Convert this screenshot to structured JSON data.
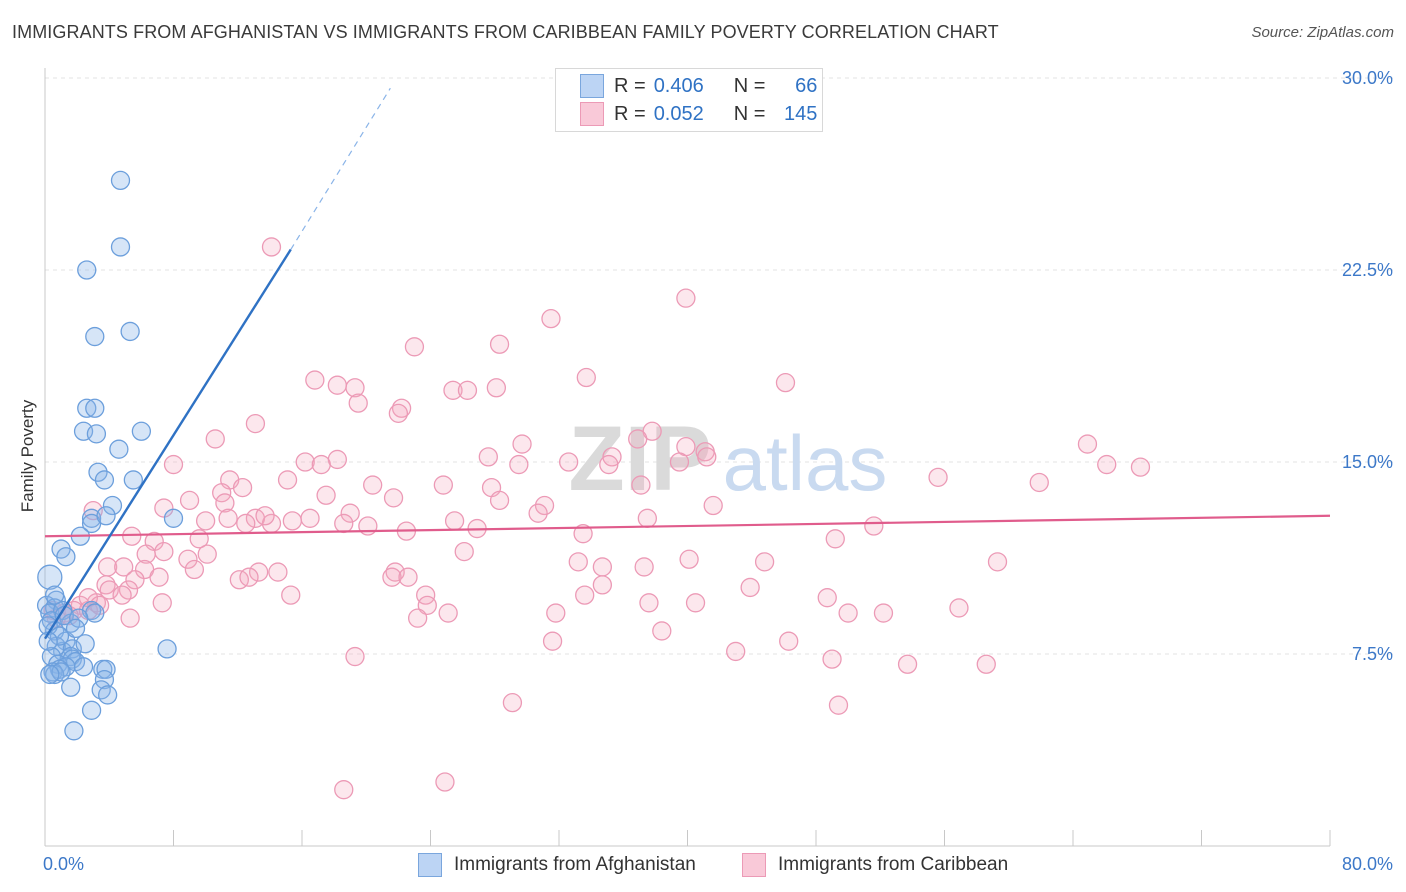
{
  "title": "IMMIGRANTS FROM AFGHANISTAN VS IMMIGRANTS FROM CARIBBEAN FAMILY POVERTY CORRELATION CHART",
  "source": "Source: ZipAtlas.com",
  "watermark": {
    "zip": "ZIP",
    "atlas": "atlas"
  },
  "legend": {
    "r_label": "R =",
    "n_label": "N =",
    "afghanistan": {
      "r": "0.406",
      "n": "66"
    },
    "caribbean": {
      "r": "0.052",
      "n": "145"
    }
  },
  "chart_data": {
    "type": "scatter",
    "title": "IMMIGRANTS FROM AFGHANISTAN VS IMMIGRANTS FROM CARIBBEAN FAMILY POVERTY CORRELATION CHART",
    "xlabel": "",
    "ylabel": "Family Poverty",
    "xlim": [
      0,
      80
    ],
    "ylim": [
      0,
      30
    ],
    "x_tick_labels": [
      "0.0%",
      "80.0%"
    ],
    "y_tick_labels": [
      "7.5%",
      "15.0%",
      "22.5%",
      "30.0%"
    ],
    "y_ticks": [
      7.5,
      15.0,
      22.5,
      30.0
    ],
    "grid": true,
    "legend_placement": "top-center",
    "series": [
      {
        "name": "Immigrants from Afghanistan",
        "color": "#8ab4e8",
        "line_color": "#2f72c4",
        "trend": {
          "x": [
            0,
            15.3
          ],
          "y": [
            8.1,
            23.3
          ]
        },
        "trend_dashed": {
          "x": [
            15.3,
            21.5
          ],
          "y": [
            23.3,
            29.6
          ]
        },
        "points": [
          [
            4.7,
            26.0
          ],
          [
            4.7,
            23.4
          ],
          [
            2.6,
            22.5
          ],
          [
            3.1,
            19.9
          ],
          [
            5.3,
            20.1
          ],
          [
            2.6,
            17.1
          ],
          [
            3.1,
            17.1
          ],
          [
            2.4,
            16.2
          ],
          [
            3.2,
            16.1
          ],
          [
            6.0,
            16.2
          ],
          [
            4.6,
            15.5
          ],
          [
            3.3,
            14.6
          ],
          [
            3.7,
            14.3
          ],
          [
            5.5,
            14.3
          ],
          [
            4.2,
            13.3
          ],
          [
            8.0,
            12.8
          ],
          [
            2.9,
            12.8
          ],
          [
            2.9,
            12.6
          ],
          [
            3.8,
            12.9
          ],
          [
            1.0,
            11.6
          ],
          [
            1.3,
            11.3
          ],
          [
            2.2,
            12.1
          ],
          [
            0.3,
            10.5
          ],
          [
            0.7,
            9.6
          ],
          [
            0.1,
            9.4
          ],
          [
            0.6,
            9.3
          ],
          [
            0.3,
            9.1
          ],
          [
            1.1,
            9.2
          ],
          [
            2.9,
            9.2
          ],
          [
            3.1,
            9.1
          ],
          [
            0.4,
            8.8
          ],
          [
            0.6,
            8.4
          ],
          [
            1.6,
            8.7
          ],
          [
            0.2,
            8.6
          ],
          [
            1.3,
            8.0
          ],
          [
            1.1,
            7.6
          ],
          [
            0.7,
            7.8
          ],
          [
            1.7,
            7.7
          ],
          [
            2.5,
            7.9
          ],
          [
            7.6,
            7.7
          ],
          [
            0.4,
            7.4
          ],
          [
            1.6,
            7.4
          ],
          [
            1.7,
            7.3
          ],
          [
            1.9,
            7.2
          ],
          [
            0.8,
            7.1
          ],
          [
            1.3,
            7.0
          ],
          [
            2.4,
            7.0
          ],
          [
            0.9,
            6.9
          ],
          [
            3.6,
            6.9
          ],
          [
            3.8,
            6.9
          ],
          [
            0.5,
            6.8
          ],
          [
            0.6,
            6.7
          ],
          [
            1.0,
            6.8
          ],
          [
            0.3,
            6.7
          ],
          [
            3.7,
            6.5
          ],
          [
            1.6,
            6.2
          ],
          [
            3.5,
            6.1
          ],
          [
            3.9,
            5.9
          ],
          [
            2.9,
            5.3
          ],
          [
            1.8,
            4.5
          ],
          [
            0.6,
            9.8
          ],
          [
            1.2,
            9.0
          ],
          [
            2.1,
            8.9
          ],
          [
            0.9,
            8.2
          ],
          [
            0.2,
            8.0
          ],
          [
            1.9,
            8.5
          ]
        ]
      },
      {
        "name": "Immigrants from Caribbean",
        "color": "#f4a9bf",
        "line_color": "#e05c8c",
        "trend": {
          "x": [
            0,
            80
          ],
          "y": [
            12.1,
            12.9
          ]
        },
        "points": [
          [
            14.1,
            23.4
          ],
          [
            39.9,
            21.4
          ],
          [
            31.5,
            20.6
          ],
          [
            28.3,
            19.6
          ],
          [
            23.0,
            19.5
          ],
          [
            16.8,
            18.2
          ],
          [
            33.7,
            18.3
          ],
          [
            18.2,
            18.0
          ],
          [
            19.3,
            17.9
          ],
          [
            25.4,
            17.8
          ],
          [
            26.3,
            17.8
          ],
          [
            28.1,
            17.9
          ],
          [
            46.1,
            18.1
          ],
          [
            19.5,
            17.3
          ],
          [
            22.2,
            17.1
          ],
          [
            22.0,
            16.9
          ],
          [
            13.1,
            16.5
          ],
          [
            29.7,
            15.7
          ],
          [
            37.8,
            16.2
          ],
          [
            36.9,
            15.9
          ],
          [
            10.6,
            15.9
          ],
          [
            64.9,
            15.7
          ],
          [
            35.3,
            15.2
          ],
          [
            39.9,
            15.6
          ],
          [
            41.1,
            15.4
          ],
          [
            41.2,
            15.2
          ],
          [
            27.6,
            15.2
          ],
          [
            16.2,
            15.0
          ],
          [
            18.2,
            15.1
          ],
          [
            32.6,
            15.0
          ],
          [
            39.5,
            15.0
          ],
          [
            17.2,
            14.9
          ],
          [
            29.5,
            14.9
          ],
          [
            35.1,
            14.9
          ],
          [
            66.1,
            14.9
          ],
          [
            68.2,
            14.8
          ],
          [
            8.0,
            14.9
          ],
          [
            11.5,
            14.3
          ],
          [
            12.3,
            14.0
          ],
          [
            15.1,
            14.3
          ],
          [
            55.6,
            14.4
          ],
          [
            61.9,
            14.2
          ],
          [
            37.1,
            14.1
          ],
          [
            24.8,
            14.1
          ],
          [
            27.8,
            14.0
          ],
          [
            20.4,
            14.1
          ],
          [
            11.0,
            13.8
          ],
          [
            17.5,
            13.7
          ],
          [
            21.7,
            13.6
          ],
          [
            9.0,
            13.5
          ],
          [
            11.2,
            13.4
          ],
          [
            7.4,
            13.2
          ],
          [
            41.6,
            13.3
          ],
          [
            31.1,
            13.3
          ],
          [
            28.3,
            13.5
          ],
          [
            30.7,
            13.0
          ],
          [
            19.0,
            13.0
          ],
          [
            13.1,
            12.8
          ],
          [
            14.1,
            12.6
          ],
          [
            16.5,
            12.8
          ],
          [
            13.7,
            12.9
          ],
          [
            18.6,
            12.6
          ],
          [
            20.1,
            12.5
          ],
          [
            11.4,
            12.8
          ],
          [
            12.5,
            12.6
          ],
          [
            15.4,
            12.7
          ],
          [
            10.0,
            12.7
          ],
          [
            37.5,
            12.8
          ],
          [
            25.5,
            12.7
          ],
          [
            26.9,
            12.4
          ],
          [
            33.5,
            12.2
          ],
          [
            51.6,
            12.5
          ],
          [
            22.5,
            12.3
          ],
          [
            49.2,
            12.0
          ],
          [
            9.6,
            12.0
          ],
          [
            5.4,
            12.1
          ],
          [
            6.8,
            11.9
          ],
          [
            7.4,
            11.5
          ],
          [
            8.9,
            11.2
          ],
          [
            10.1,
            11.4
          ],
          [
            6.3,
            11.4
          ],
          [
            26.1,
            11.5
          ],
          [
            33.2,
            11.1
          ],
          [
            34.7,
            10.9
          ],
          [
            37.3,
            10.9
          ],
          [
            40.1,
            11.2
          ],
          [
            44.8,
            11.1
          ],
          [
            59.3,
            11.1
          ],
          [
            3.9,
            10.9
          ],
          [
            4.9,
            10.9
          ],
          [
            6.2,
            10.8
          ],
          [
            9.3,
            10.8
          ],
          [
            13.3,
            10.7
          ],
          [
            14.5,
            10.7
          ],
          [
            21.8,
            10.7
          ],
          [
            21.6,
            10.5
          ],
          [
            22.6,
            10.5
          ],
          [
            7.1,
            10.5
          ],
          [
            5.6,
            10.4
          ],
          [
            12.1,
            10.4
          ],
          [
            12.7,
            10.5
          ],
          [
            3.8,
            10.2
          ],
          [
            4.0,
            10.0
          ],
          [
            5.2,
            10.0
          ],
          [
            4.8,
            9.8
          ],
          [
            15.3,
            9.8
          ],
          [
            23.7,
            9.8
          ],
          [
            33.6,
            9.8
          ],
          [
            34.7,
            10.2
          ],
          [
            43.9,
            10.1
          ],
          [
            3.2,
            9.5
          ],
          [
            2.2,
            9.4
          ],
          [
            1.8,
            9.2
          ],
          [
            2.7,
            9.2
          ],
          [
            1.2,
            9.1
          ],
          [
            1.5,
            9.0
          ],
          [
            0.7,
            8.9
          ],
          [
            0.5,
            9.2
          ],
          [
            2.7,
            9.7
          ],
          [
            3.4,
            9.4
          ],
          [
            7.3,
            9.5
          ],
          [
            23.8,
            9.4
          ],
          [
            25.1,
            9.1
          ],
          [
            31.8,
            9.1
          ],
          [
            37.6,
            9.5
          ],
          [
            40.5,
            9.5
          ],
          [
            50.0,
            9.1
          ],
          [
            52.2,
            9.1
          ],
          [
            48.7,
            9.7
          ],
          [
            56.9,
            9.3
          ],
          [
            23.2,
            8.9
          ],
          [
            5.3,
            8.9
          ],
          [
            38.4,
            8.4
          ],
          [
            46.3,
            8.0
          ],
          [
            31.6,
            8.0
          ],
          [
            43.0,
            7.6
          ],
          [
            19.3,
            7.4
          ],
          [
            49.0,
            7.3
          ],
          [
            53.7,
            7.1
          ],
          [
            58.6,
            7.1
          ],
          [
            29.1,
            5.6
          ],
          [
            49.4,
            5.5
          ],
          [
            24.9,
            2.5
          ],
          [
            18.6,
            2.2
          ],
          [
            3.0,
            13.1
          ]
        ]
      }
    ]
  }
}
